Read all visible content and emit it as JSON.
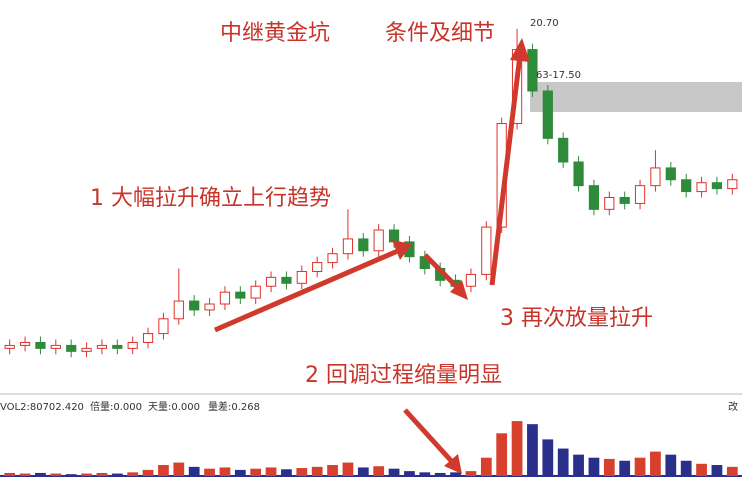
{
  "chart_data": [
    {
      "type": "candlestick",
      "title": "中继黄金坑",
      "subtitle": "条件及细节",
      "annotations": [
        "1 大幅拉升确立上行趋势",
        "2 回调过程缩量明显",
        "3 再次放量拉升"
      ],
      "price_labels": [
        "20.70",
        "63-17.50"
      ],
      "up_color": "#e0302a",
      "down_color": "#2e8b3a",
      "ylim": [
        9.0,
        21.0
      ],
      "open": [
        9.9,
        10.0,
        10.1,
        9.9,
        10.0,
        9.8,
        9.9,
        10.0,
        9.9,
        10.1,
        10.4,
        10.9,
        11.5,
        11.2,
        11.4,
        11.8,
        11.6,
        12.0,
        12.3,
        12.1,
        12.5,
        12.8,
        13.1,
        13.6,
        13.2,
        13.9,
        13.5,
        13.0,
        12.6,
        12.2,
        12.0,
        12.4,
        14.0,
        17.5,
        20.0,
        18.6,
        17.0,
        16.2,
        15.4,
        14.6,
        15.0,
        14.8,
        15.4,
        16.0,
        15.6,
        15.2,
        15.5,
        15.3
      ],
      "high": [
        10.2,
        10.3,
        10.3,
        10.2,
        10.2,
        10.1,
        10.2,
        10.2,
        10.3,
        10.6,
        11.1,
        12.6,
        11.7,
        11.6,
        12.0,
        12.0,
        12.2,
        12.5,
        12.5,
        12.7,
        13.0,
        13.3,
        14.6,
        13.8,
        14.1,
        14.1,
        13.7,
        13.2,
        12.8,
        12.4,
        12.6,
        14.2,
        17.7,
        20.7,
        20.2,
        18.8,
        17.2,
        16.4,
        15.6,
        15.2,
        15.2,
        15.6,
        16.6,
        16.2,
        15.8,
        15.7,
        15.7,
        15.8
      ],
      "low": [
        9.7,
        9.8,
        9.7,
        9.7,
        9.6,
        9.6,
        9.7,
        9.7,
        9.7,
        9.9,
        10.2,
        10.7,
        11.0,
        11.0,
        11.2,
        11.4,
        11.4,
        11.8,
        11.9,
        11.9,
        12.3,
        12.6,
        12.9,
        13.0,
        13.0,
        13.3,
        12.8,
        12.4,
        12.0,
        11.8,
        11.8,
        12.2,
        13.8,
        17.3,
        18.4,
        16.8,
        16.0,
        15.2,
        14.4,
        14.4,
        14.6,
        14.6,
        15.2,
        15.4,
        15.0,
        15.0,
        15.1,
        15.1
      ],
      "close": [
        10.0,
        10.1,
        9.9,
        10.0,
        9.8,
        9.9,
        10.0,
        9.9,
        10.1,
        10.4,
        10.9,
        11.5,
        11.2,
        11.4,
        11.8,
        11.6,
        12.0,
        12.3,
        12.1,
        12.5,
        12.8,
        13.1,
        13.6,
        13.2,
        13.9,
        13.5,
        13.0,
        12.6,
        12.2,
        12.0,
        12.4,
        14.0,
        17.5,
        20.0,
        18.6,
        17.0,
        16.2,
        15.4,
        14.6,
        15.0,
        14.8,
        15.4,
        16.0,
        15.6,
        15.2,
        15.5,
        15.3,
        15.6
      ]
    },
    {
      "type": "bar",
      "indicator_labels": [
        "VOL2:80702.420",
        "倍量:0.000",
        "天量:0.000",
        "量差:0.268",
        "改"
      ],
      "up_color": "#d8402e",
      "down_color": "#2a2f8c",
      "ylim": [
        0,
        100
      ],
      "values": [
        5,
        4,
        5,
        4,
        3,
        4,
        5,
        4,
        6,
        10,
        18,
        22,
        15,
        12,
        14,
        10,
        12,
        14,
        11,
        13,
        15,
        18,
        22,
        14,
        16,
        12,
        8,
        6,
        5,
        6,
        8,
        30,
        70,
        90,
        85,
        60,
        45,
        35,
        30,
        28,
        25,
        30,
        40,
        35,
        25,
        20,
        18,
        15
      ]
    }
  ]
}
